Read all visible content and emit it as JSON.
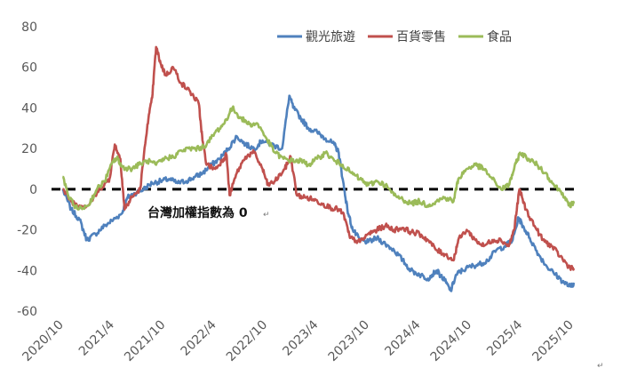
{
  "chart_data": {
    "type": "line",
    "title": "",
    "xlabel": "",
    "ylabel": "",
    "ylim": [
      -60,
      80
    ],
    "yticks": [
      80,
      60,
      40,
      20,
      0,
      -20,
      -40,
      -60
    ],
    "xticks": [
      "2020/10",
      "2021/4",
      "2021/10",
      "2022/4",
      "2022/10",
      "2023/4",
      "2023/10",
      "2024/4",
      "2024/10",
      "2025/4",
      "2025/10"
    ],
    "xlim": [
      "2020/10",
      "2025/10"
    ],
    "grid": false,
    "legend_position": "top-right",
    "annotation": "台灣加權指數為 0",
    "reference_line": 0,
    "series": [
      {
        "name": "觀光旅遊",
        "color": "#4F81BD",
        "points": [
          [
            "2020-10-15",
            0
          ],
          [
            "2020-11-15",
            -10
          ],
          [
            "2020-12-15",
            -15
          ],
          [
            "2021-01-10",
            -25
          ],
          [
            "2021-02-10",
            -22
          ],
          [
            "2021-03-15",
            -18
          ],
          [
            "2021-04-15",
            -15
          ],
          [
            "2021-05-15",
            -12
          ],
          [
            "2021-06-05",
            -4
          ],
          [
            "2021-07-01",
            -2
          ],
          [
            "2021-08-01",
            0
          ],
          [
            "2021-09-01",
            3
          ],
          [
            "2021-10-01",
            4
          ],
          [
            "2021-11-01",
            5
          ],
          [
            "2021-12-01",
            3
          ],
          [
            "2022-01-01",
            4
          ],
          [
            "2022-02-01",
            6
          ],
          [
            "2022-03-01",
            8
          ],
          [
            "2022-04-01",
            12
          ],
          [
            "2022-05-01",
            15
          ],
          [
            "2022-06-01",
            20
          ],
          [
            "2022-07-01",
            26
          ],
          [
            "2022-08-01",
            22
          ],
          [
            "2022-09-01",
            20
          ],
          [
            "2022-10-01",
            24
          ],
          [
            "2022-11-01",
            22
          ],
          [
            "2022-12-10",
            20
          ],
          [
            "2023-01-05",
            46
          ],
          [
            "2023-01-20",
            40
          ],
          [
            "2023-02-15",
            35
          ],
          [
            "2023-03-15",
            30
          ],
          [
            "2023-04-15",
            28
          ],
          [
            "2023-05-15",
            25
          ],
          [
            "2023-06-15",
            22
          ],
          [
            "2023-07-01",
            18
          ],
          [
            "2023-07-15",
            5
          ],
          [
            "2023-08-01",
            -10
          ],
          [
            "2023-08-20",
            -20
          ],
          [
            "2023-09-15",
            -25
          ],
          [
            "2023-10-15",
            -26
          ],
          [
            "2023-11-15",
            -24
          ],
          [
            "2023-12-15",
            -27
          ],
          [
            "2024-01-15",
            -30
          ],
          [
            "2024-02-15",
            -35
          ],
          [
            "2024-03-15",
            -40
          ],
          [
            "2024-04-15",
            -42
          ],
          [
            "2024-05-15",
            -44
          ],
          [
            "2024-06-15",
            -40
          ],
          [
            "2024-07-15",
            -45
          ],
          [
            "2024-08-05",
            -50
          ],
          [
            "2024-08-25",
            -42
          ],
          [
            "2024-09-15",
            -40
          ],
          [
            "2024-10-15",
            -38
          ],
          [
            "2024-11-15",
            -37
          ],
          [
            "2024-12-15",
            -35
          ],
          [
            "2025-01-15",
            -30
          ],
          [
            "2025-02-15",
            -28
          ],
          [
            "2025-03-15",
            -25
          ],
          [
            "2025-04-05",
            -14
          ],
          [
            "2025-04-20",
            -18
          ],
          [
            "2025-05-15",
            -24
          ],
          [
            "2025-06-15",
            -32
          ],
          [
            "2025-07-15",
            -38
          ],
          [
            "2025-08-15",
            -42
          ],
          [
            "2025-09-15",
            -46
          ],
          [
            "2025-10-10",
            -48
          ],
          [
            "2025-10-20",
            -46
          ]
        ]
      },
      {
        "name": "百貨零售",
        "color": "#C0504D",
        "points": [
          [
            "2020-10-15",
            0
          ],
          [
            "2020-11-15",
            -6
          ],
          [
            "2020-12-15",
            -8
          ],
          [
            "2021-01-15",
            -8
          ],
          [
            "2021-02-15",
            -2
          ],
          [
            "2021-03-15",
            3
          ],
          [
            "2021-04-01",
            5
          ],
          [
            "2021-04-20",
            22
          ],
          [
            "2021-05-10",
            15
          ],
          [
            "2021-05-25",
            -10
          ],
          [
            "2021-06-20",
            -4
          ],
          [
            "2021-07-20",
            0
          ],
          [
            "2021-08-15",
            32
          ],
          [
            "2021-09-01",
            45
          ],
          [
            "2021-09-15",
            70
          ],
          [
            "2021-10-01",
            62
          ],
          [
            "2021-10-20",
            56
          ],
          [
            "2021-11-15",
            60
          ],
          [
            "2021-12-15",
            52
          ],
          [
            "2022-01-15",
            48
          ],
          [
            "2022-02-15",
            42
          ],
          [
            "2022-02-28",
            24
          ],
          [
            "2022-03-15",
            12
          ],
          [
            "2022-04-15",
            10
          ],
          [
            "2022-05-15",
            15
          ],
          [
            "2022-05-25",
            17
          ],
          [
            "2022-06-05",
            -3
          ],
          [
            "2022-07-01",
            8
          ],
          [
            "2022-08-01",
            16
          ],
          [
            "2022-09-01",
            18
          ],
          [
            "2022-10-01",
            10
          ],
          [
            "2022-10-20",
            2
          ],
          [
            "2022-11-15",
            4
          ],
          [
            "2022-12-20",
            10
          ],
          [
            "2023-01-10",
            16
          ],
          [
            "2023-02-01",
            -3
          ],
          [
            "2023-03-01",
            -4
          ],
          [
            "2023-04-01",
            -5
          ],
          [
            "2023-05-01",
            -7
          ],
          [
            "2023-06-01",
            -9
          ],
          [
            "2023-07-01",
            -10
          ],
          [
            "2023-07-20",
            -13
          ],
          [
            "2023-08-10",
            -24
          ],
          [
            "2023-09-15",
            -26
          ],
          [
            "2023-10-15",
            -22
          ],
          [
            "2023-11-15",
            -20
          ],
          [
            "2023-12-15",
            -18
          ],
          [
            "2024-01-15",
            -20
          ],
          [
            "2024-02-15",
            -19
          ],
          [
            "2024-03-15",
            -21
          ],
          [
            "2024-04-15",
            -22
          ],
          [
            "2024-05-15",
            -25
          ],
          [
            "2024-06-15",
            -30
          ],
          [
            "2024-07-15",
            -32
          ],
          [
            "2024-08-15",
            -35
          ],
          [
            "2024-09-01",
            -25
          ],
          [
            "2024-10-01",
            -20
          ],
          [
            "2024-11-01",
            -25
          ],
          [
            "2024-12-01",
            -28
          ],
          [
            "2025-01-01",
            -25
          ],
          [
            "2025-02-01",
            -25
          ],
          [
            "2025-03-01",
            -28
          ],
          [
            "2025-03-20",
            -20
          ],
          [
            "2025-04-08",
            0
          ],
          [
            "2025-05-01",
            -10
          ],
          [
            "2025-06-01",
            -18
          ],
          [
            "2025-07-01",
            -25
          ],
          [
            "2025-08-01",
            -28
          ],
          [
            "2025-09-01",
            -33
          ],
          [
            "2025-10-01",
            -38
          ],
          [
            "2025-10-20",
            -39
          ]
        ]
      },
      {
        "name": "食品",
        "color": "#9BBB59",
        "points": [
          [
            "2020-10-15",
            6
          ],
          [
            "2020-11-10",
            -5
          ],
          [
            "2020-12-10",
            -10
          ],
          [
            "2021-01-15",
            -8
          ],
          [
            "2021-02-15",
            0
          ],
          [
            "2021-03-15",
            4
          ],
          [
            "2021-04-15",
            14
          ],
          [
            "2021-05-01",
            15
          ],
          [
            "2021-05-15",
            11
          ],
          [
            "2021-06-15",
            10
          ],
          [
            "2021-07-15",
            12
          ],
          [
            "2021-08-15",
            14
          ],
          [
            "2021-09-15",
            12
          ],
          [
            "2021-10-15",
            15
          ],
          [
            "2021-11-15",
            16
          ],
          [
            "2021-12-15",
            19
          ],
          [
            "2022-01-15",
            20
          ],
          [
            "2022-02-15",
            20
          ],
          [
            "2022-03-15",
            22
          ],
          [
            "2022-04-15",
            28
          ],
          [
            "2022-05-15",
            32
          ],
          [
            "2022-06-15",
            40
          ],
          [
            "2022-07-15",
            35
          ],
          [
            "2022-08-15",
            32
          ],
          [
            "2022-09-15",
            32
          ],
          [
            "2022-10-15",
            25
          ],
          [
            "2022-11-15",
            18
          ],
          [
            "2022-12-15",
            15
          ],
          [
            "2023-01-15",
            14
          ],
          [
            "2023-02-15",
            14
          ],
          [
            "2023-03-15",
            12
          ],
          [
            "2023-04-15",
            15
          ],
          [
            "2023-05-15",
            18
          ],
          [
            "2023-06-15",
            14
          ],
          [
            "2023-07-15",
            12
          ],
          [
            "2023-08-15",
            8
          ],
          [
            "2023-09-15",
            5
          ],
          [
            "2023-10-15",
            2
          ],
          [
            "2023-11-15",
            4
          ],
          [
            "2023-12-15",
            2
          ],
          [
            "2024-01-15",
            -3
          ],
          [
            "2024-02-15",
            -5
          ],
          [
            "2024-03-15",
            -7
          ],
          [
            "2024-04-15",
            -6
          ],
          [
            "2024-05-15",
            -8
          ],
          [
            "2024-06-15",
            -6
          ],
          [
            "2024-07-15",
            -4
          ],
          [
            "2024-08-15",
            -6
          ],
          [
            "2024-09-01",
            5
          ],
          [
            "2024-10-01",
            10
          ],
          [
            "2024-11-01",
            12
          ],
          [
            "2024-12-01",
            10
          ],
          [
            "2025-01-01",
            5
          ],
          [
            "2025-02-01",
            0
          ],
          [
            "2025-03-01",
            2
          ],
          [
            "2025-03-20",
            10
          ],
          [
            "2025-04-10",
            18
          ],
          [
            "2025-05-10",
            15
          ],
          [
            "2025-06-10",
            12
          ],
          [
            "2025-07-10",
            8
          ],
          [
            "2025-08-10",
            2
          ],
          [
            "2025-09-10",
            -2
          ],
          [
            "2025-10-01",
            -8
          ],
          [
            "2025-10-20",
            -7
          ]
        ]
      }
    ]
  },
  "ui": {
    "cursor_glyph": "↵"
  }
}
